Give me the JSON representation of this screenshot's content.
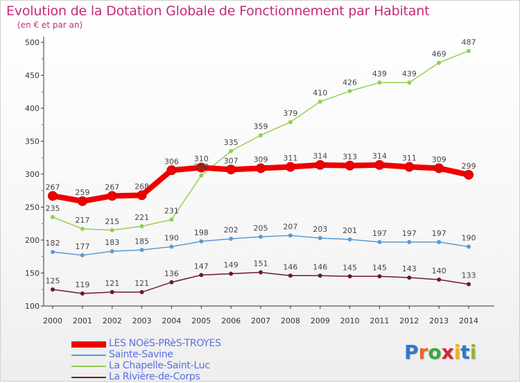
{
  "title": "Evolution de la Dotation Globale de Fonctionnement par Habitant",
  "subtitle": "(en € et par an)",
  "logo": {
    "text": "Proxiti",
    "letter_colors": [
      "#2e79c9",
      "#e8681f",
      "#3aa63a",
      "#d9242e",
      "#f0b21d",
      "#2e79c9",
      "#8db63c"
    ]
  },
  "colors": {
    "title": "#c42a7b",
    "axis_text": "#333333",
    "legend_text": "#5b6ee0"
  },
  "chart_data": {
    "type": "line",
    "x": [
      "2000",
      "2001",
      "2002",
      "2003",
      "2004",
      "2005",
      "2006",
      "2007",
      "2008",
      "2009",
      "2010",
      "2011",
      "2012",
      "2013",
      "2014"
    ],
    "yticks": [
      100,
      150,
      200,
      250,
      300,
      350,
      400,
      450,
      500
    ],
    "ylim": [
      100,
      500
    ],
    "grid": false,
    "legend_position": "bottom-left",
    "series": [
      {
        "name": "LES NOëS-PRèS-TROYES",
        "color": "#ee0000",
        "emphasis": true,
        "values": [
          267,
          259,
          267,
          268,
          306,
          310,
          307,
          309,
          311,
          314,
          313,
          314,
          311,
          309,
          299
        ]
      },
      {
        "name": "Sainte-Savine",
        "color": "#5b9bd5",
        "emphasis": false,
        "values": [
          182,
          177,
          183,
          185,
          190,
          198,
          202,
          205,
          207,
          203,
          201,
          197,
          197,
          197,
          190
        ]
      },
      {
        "name": "La Chapelle-Saint-Luc",
        "color": "#92d050",
        "emphasis": false,
        "values": [
          235,
          217,
          215,
          221,
          231,
          298,
          335,
          359,
          379,
          410,
          426,
          439,
          439,
          469,
          487
        ]
      },
      {
        "name": "La Rivière-de-Corps",
        "color": "#6b1c24",
        "emphasis": false,
        "values": [
          125,
          119,
          121,
          121,
          136,
          147,
          149,
          151,
          146,
          146,
          145,
          145,
          143,
          140,
          133
        ]
      }
    ]
  }
}
